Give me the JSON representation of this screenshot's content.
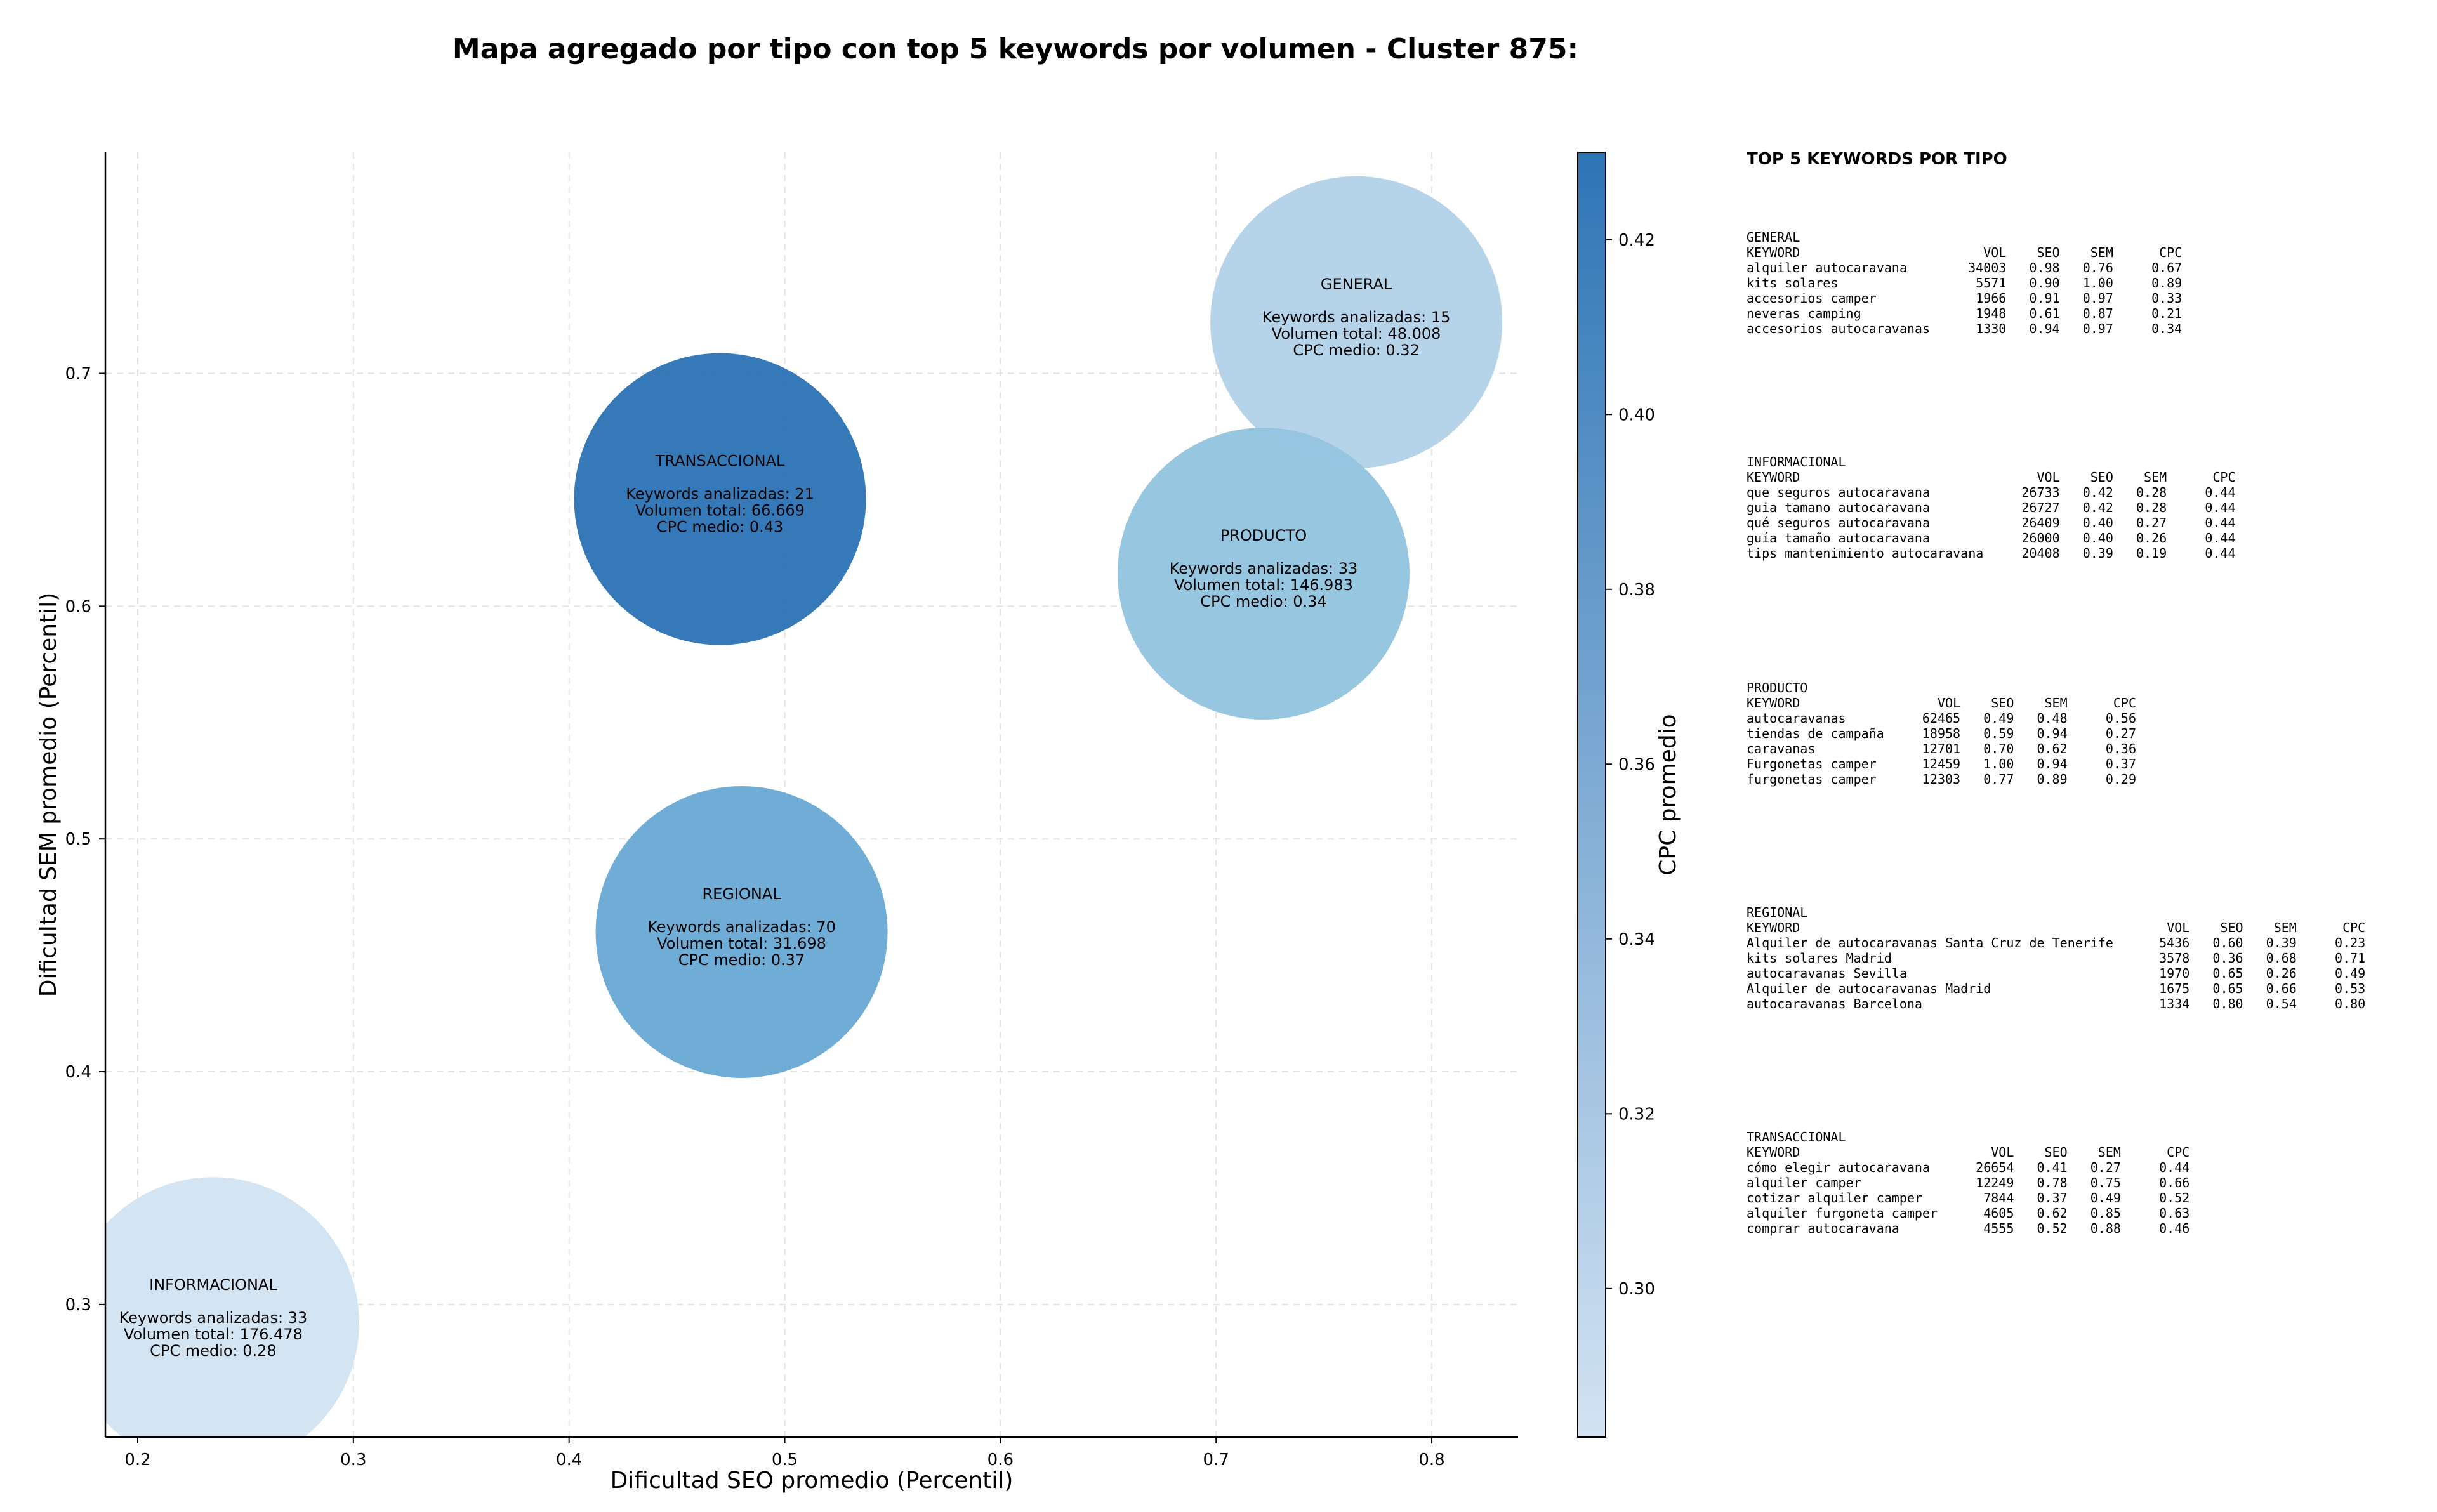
{
  "chart_data": {
    "type": "scatter",
    "title": "Mapa agregado por tipo con top 5 keywords por volumen - Cluster 875:",
    "xlabel": "Dificultad SEO promedio (Percentil)",
    "ylabel": "Dificultad SEM promedio (Percentil)",
    "xlim": [
      0.185,
      0.84
    ],
    "ylim": [
      0.243,
      0.795
    ],
    "xticks": [
      "0.2",
      "0.3",
      "0.4",
      "0.5",
      "0.6",
      "0.7",
      "0.8"
    ],
    "yticks": [
      "0.3",
      "0.4",
      "0.5",
      "0.6",
      "0.7"
    ],
    "grid": true,
    "colorbar": {
      "label": "CPC promedio",
      "range": [
        0.283,
        0.43
      ],
      "ticks": [
        "0.30",
        "0.32",
        "0.34",
        "0.36",
        "0.38",
        "0.40",
        "0.42"
      ],
      "color_low": "#d2e3f3",
      "color_high": "#2e75b6"
    },
    "points": [
      {
        "type": "GENERAL",
        "x": 0.765,
        "y": 0.722,
        "cpc": 0.32,
        "keywords": 15,
        "volume": "48.008",
        "lines": [
          "Keywords analizadas: 15",
          "Volumen total: 48.008",
          "CPC medio: 0.32"
        ],
        "color": "#b3d3e8"
      },
      {
        "type": "TRANSACCIONAL",
        "x": 0.47,
        "y": 0.646,
        "cpc": 0.43,
        "keywords": 21,
        "volume": "66.669",
        "lines": [
          "Keywords analizadas: 21",
          "Volumen total: 66.669",
          "CPC medio: 0.43"
        ],
        "color": "#2e75b6"
      },
      {
        "type": "PRODUCTO",
        "x": 0.722,
        "y": 0.614,
        "cpc": 0.34,
        "keywords": 33,
        "volume": "146.983",
        "lines": [
          "Keywords analizadas: 33",
          "Volumen total: 146.983",
          "CPC medio: 0.34"
        ],
        "color": "#94c4df"
      },
      {
        "type": "REGIONAL",
        "x": 0.48,
        "y": 0.46,
        "cpc": 0.37,
        "keywords": 70,
        "volume": "31.698",
        "lines": [
          "Keywords analizadas: 70",
          "Volumen total: 31.698",
          "CPC medio: 0.37"
        ],
        "color": "#6aaad5"
      },
      {
        "type": "INFORMACIONAL",
        "x": 0.235,
        "y": 0.292,
        "cpc": 0.28,
        "keywords": 33,
        "volume": "176.478",
        "lines": [
          "Keywords analizadas: 33",
          "Volumen total: 176.478",
          "CPC medio: 0.28"
        ],
        "color": "#d2e3f3"
      }
    ]
  },
  "side_panel": {
    "title": "TOP 5 KEYWORDS POR TIPO",
    "headers": [
      "KEYWORD",
      "VOL",
      "SEO",
      "SEM",
      "CPC"
    ],
    "blocks": [
      {
        "type": "GENERAL",
        "kw_width": 28,
        "rows": [
          [
            "alquiler autocaravana",
            "34003",
            "0.98",
            "0.76",
            "0.67"
          ],
          [
            "kits solares",
            "5571",
            "0.90",
            "1.00",
            "0.89"
          ],
          [
            "accesorios camper",
            "1966",
            "0.91",
            "0.97",
            "0.33"
          ],
          [
            "neveras camping",
            "1948",
            "0.61",
            "0.87",
            "0.21"
          ],
          [
            "accesorios autocaravanas",
            "1330",
            "0.94",
            "0.97",
            "0.34"
          ]
        ]
      },
      {
        "type": "INFORMACIONAL",
        "kw_width": 35,
        "rows": [
          [
            "que seguros autocaravana",
            "26733",
            "0.42",
            "0.28",
            "0.44"
          ],
          [
            "guia tamano autocaravana",
            "26727",
            "0.42",
            "0.28",
            "0.44"
          ],
          [
            "qué seguros autocaravana",
            "26409",
            "0.40",
            "0.27",
            "0.44"
          ],
          [
            "guía tamaño autocaravana",
            "26000",
            "0.40",
            "0.26",
            "0.44"
          ],
          [
            "tips mantenimiento autocaravana",
            "20408",
            "0.39",
            "0.19",
            "0.44"
          ]
        ]
      },
      {
        "type": "PRODUCTO",
        "kw_width": 22,
        "rows": [
          [
            "autocaravanas",
            "62465",
            "0.49",
            "0.48",
            "0.56"
          ],
          [
            "tiendas de campaña",
            "18958",
            "0.59",
            "0.94",
            "0.27"
          ],
          [
            "caravanas",
            "12701",
            "0.70",
            "0.62",
            "0.36"
          ],
          [
            "Furgonetas camper",
            "12459",
            "1.00",
            "0.94",
            "0.37"
          ],
          [
            "furgonetas camper",
            "12303",
            "0.77",
            "0.89",
            "0.29"
          ]
        ]
      },
      {
        "type": "REGIONAL",
        "kw_width": 52,
        "rows": [
          [
            "Alquiler de autocaravanas Santa Cruz de Tenerife",
            "5436",
            "0.60",
            "0.39",
            "0.23"
          ],
          [
            "kits solares Madrid",
            "3578",
            "0.36",
            "0.68",
            "0.71"
          ],
          [
            "autocaravanas Sevilla",
            "1970",
            "0.65",
            "0.26",
            "0.49"
          ],
          [
            "Alquiler de autocaravanas Madrid",
            "1675",
            "0.65",
            "0.66",
            "0.53"
          ],
          [
            "autocaravanas Barcelona",
            "1334",
            "0.80",
            "0.54",
            "0.80"
          ]
        ]
      },
      {
        "type": "TRANSACCIONAL",
        "kw_width": 29,
        "rows": [
          [
            "cómo elegir autocaravana",
            "26654",
            "0.41",
            "0.27",
            "0.44"
          ],
          [
            "alquiler camper",
            "12249",
            "0.78",
            "0.75",
            "0.66"
          ],
          [
            "cotizar alquiler camper",
            "7844",
            "0.37",
            "0.49",
            "0.52"
          ],
          [
            "alquiler furgoneta camper",
            "4605",
            "0.62",
            "0.85",
            "0.63"
          ],
          [
            "comprar autocaravana",
            "4555",
            "0.52",
            "0.88",
            "0.46"
          ]
        ]
      }
    ]
  }
}
